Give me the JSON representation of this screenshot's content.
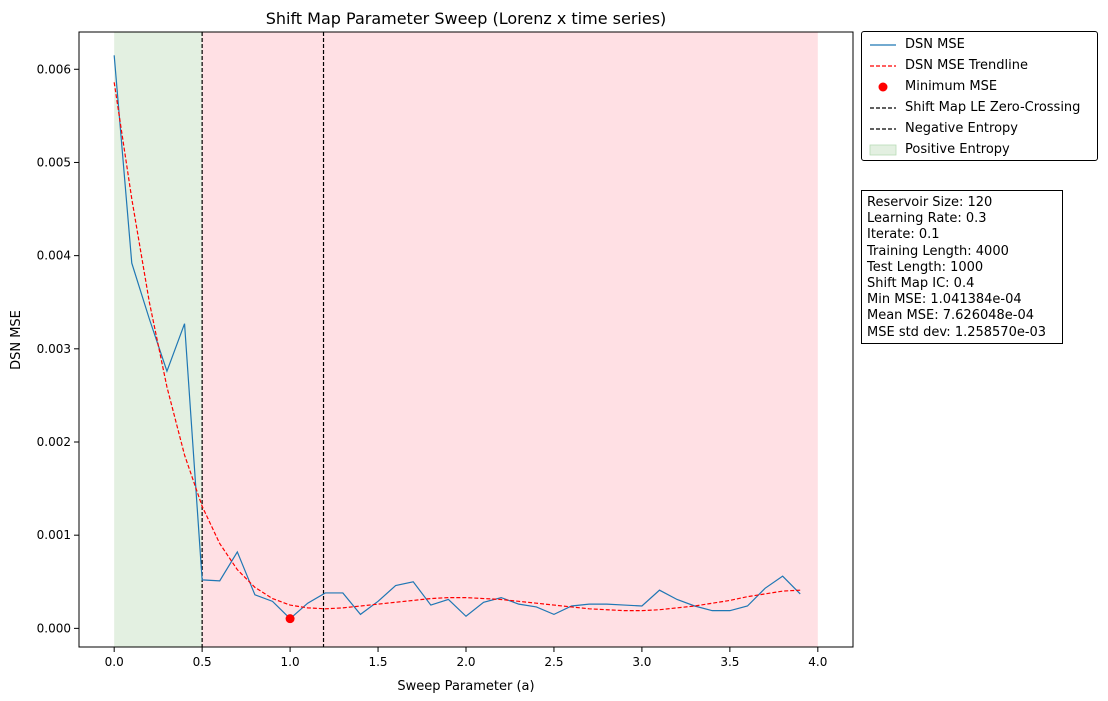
{
  "chart_data": {
    "type": "line",
    "title": "Shift Map Parameter Sweep (Lorenz x time series)",
    "xlabel": "Sweep Parameter (a)",
    "ylabel": "DSN MSE",
    "xlim": [
      -0.2,
      4.2
    ],
    "ylim": [
      -0.0002,
      0.0064
    ],
    "xticks": [
      0.0,
      0.5,
      1.0,
      1.5,
      2.0,
      2.5,
      3.0,
      3.5,
      4.0
    ],
    "xtick_labels": [
      "0.0",
      "0.5",
      "1.0",
      "1.5",
      "2.0",
      "2.5",
      "3.0",
      "3.5",
      "4.0"
    ],
    "yticks": [
      0.0,
      0.001,
      0.002,
      0.003,
      0.004,
      0.005,
      0.006
    ],
    "ytick_labels": [
      "0.000",
      "0.001",
      "0.002",
      "0.003",
      "0.004",
      "0.005",
      "0.006"
    ],
    "grid": false,
    "legend_position": "outside-top-right",
    "series": [
      {
        "name": "DSN MSE",
        "style": "solid",
        "color": "#1f77b4",
        "x": [
          0.0,
          0.1,
          0.2,
          0.3,
          0.4,
          0.5,
          0.6,
          0.7,
          0.8,
          0.9,
          1.0,
          1.1,
          1.2,
          1.3,
          1.4,
          1.5,
          1.6,
          1.7,
          1.8,
          1.9,
          2.0,
          2.1,
          2.2,
          2.3,
          2.4,
          2.5,
          2.6,
          2.7,
          2.8,
          2.9,
          3.0,
          3.1,
          3.2,
          3.3,
          3.4,
          3.5,
          3.6,
          3.7,
          3.8,
          3.9
        ],
        "values": [
          0.00615,
          0.00392,
          0.00332,
          0.00276,
          0.00327,
          0.00052,
          0.00051,
          0.00082,
          0.00036,
          0.00029,
          0.000104,
          0.00027,
          0.00038,
          0.00038,
          0.00015,
          0.00029,
          0.00046,
          0.0005,
          0.00025,
          0.00031,
          0.00013,
          0.00028,
          0.00033,
          0.00026,
          0.00023,
          0.00015,
          0.00024,
          0.00026,
          0.00026,
          0.00025,
          0.00024,
          0.00041,
          0.00031,
          0.00024,
          0.00019,
          0.00019,
          0.00024,
          0.00043,
          0.00056,
          0.00037
        ]
      },
      {
        "name": "DSN MSE Trendline",
        "style": "dashed",
        "color": "#ff0000",
        "x": [
          0.0,
          0.1,
          0.2,
          0.3,
          0.4,
          0.5,
          0.6,
          0.7,
          0.8,
          0.9,
          1.0,
          1.1,
          1.2,
          1.3,
          1.4,
          1.5,
          1.6,
          1.7,
          1.8,
          1.9,
          2.0,
          2.1,
          2.2,
          2.3,
          2.4,
          2.5,
          2.6,
          2.7,
          2.8,
          2.9,
          3.0,
          3.1,
          3.2,
          3.3,
          3.4,
          3.5,
          3.6,
          3.7,
          3.8,
          3.9
        ],
        "values": [
          0.00586,
          0.00461,
          0.0035,
          0.00259,
          0.00186,
          0.00131,
          0.00091,
          0.00063,
          0.00044,
          0.00032,
          0.00025,
          0.00022,
          0.00021,
          0.00022,
          0.00024,
          0.00026,
          0.00028,
          0.0003,
          0.00032,
          0.00033,
          0.00033,
          0.00032,
          0.00031,
          0.00029,
          0.00027,
          0.00025,
          0.00023,
          0.00021,
          0.0002,
          0.00019,
          0.00019,
          0.0002,
          0.00022,
          0.00024,
          0.00027,
          0.0003,
          0.00034,
          0.00037,
          0.0004,
          0.00041
        ]
      }
    ],
    "minimum_point": {
      "name": "Minimum MSE",
      "x": 1.0,
      "y": 0.000104,
      "color": "#ff0000"
    },
    "vertical_lines": [
      {
        "name": "Shift Map LE Zero-Crossing",
        "x": 0.5,
        "style": "dashed",
        "color": "#000000"
      },
      {
        "name": "Negative Entropy",
        "x": 1.19,
        "style": "dashed",
        "color": "#000000"
      }
    ],
    "shaded_regions": [
      {
        "name": "Positive Entropy",
        "x0": 0.0,
        "x1": 0.5,
        "color": "#e3f0e1"
      },
      {
        "name": "",
        "x0": 0.5,
        "x1": 4.0,
        "color": "#ffe0e4"
      }
    ],
    "legend": [
      {
        "label": "DSN MSE",
        "kind": "line",
        "style": "solid",
        "color": "#1f77b4"
      },
      {
        "label": "DSN MSE Trendline",
        "kind": "line",
        "style": "dashed",
        "color": "#ff0000"
      },
      {
        "label": "Minimum MSE",
        "kind": "marker",
        "color": "#ff0000"
      },
      {
        "label": "Shift Map LE Zero-Crossing",
        "kind": "line",
        "style": "dashed",
        "color": "#000000"
      },
      {
        "label": "Negative Entropy",
        "kind": "line",
        "style": "dashed",
        "color": "#000000"
      },
      {
        "label": "Positive Entropy",
        "kind": "patch",
        "color": "#e3f0e1",
        "edge": "#b9dcb6"
      }
    ],
    "info_box": [
      "Reservoir Size: 120",
      "Learning Rate: 0.3",
      "Iterate: 0.1",
      "Training Length: 4000",
      "Test Length: 1000",
      "Shift Map IC: 0.4",
      "Min MSE: 1.041384e-04",
      "Mean MSE: 7.626048e-04",
      "MSE std dev: 1.258570e-03"
    ]
  }
}
